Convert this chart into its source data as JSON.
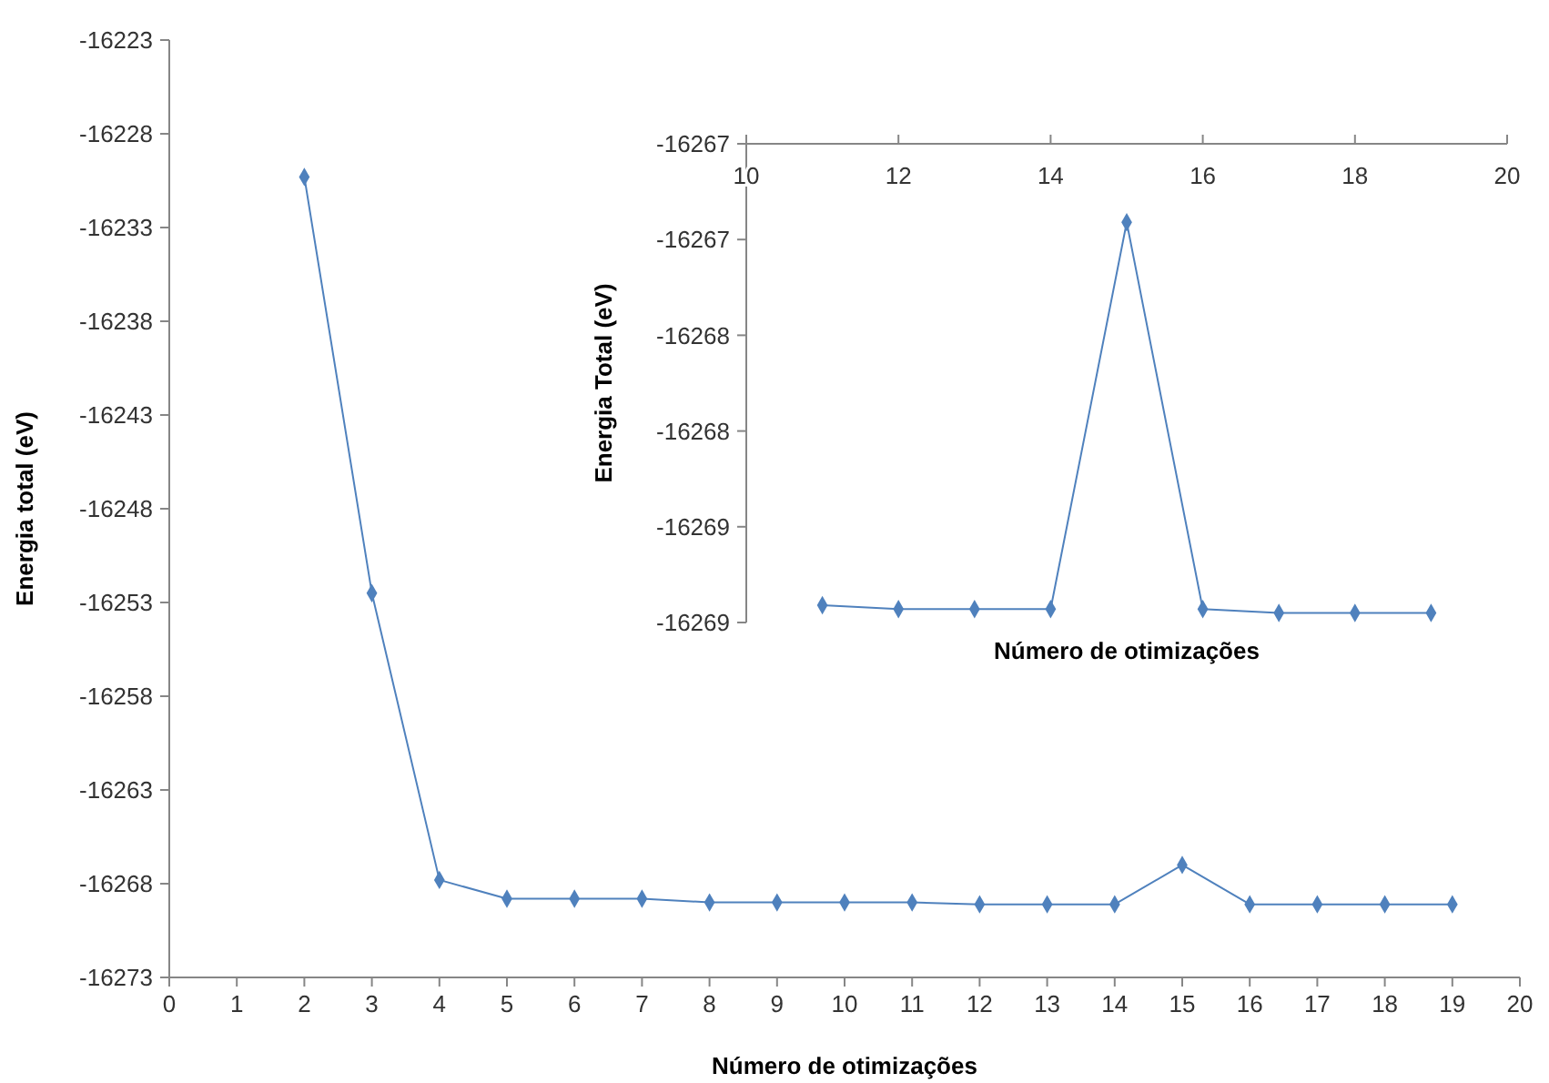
{
  "chart_data": [
    {
      "type": "line",
      "xlabel": "Número de otimizações",
      "ylabel": "Energia total (eV)",
      "x": [
        2,
        3,
        4,
        5,
        6,
        7,
        8,
        9,
        10,
        11,
        12,
        13,
        14,
        15,
        16,
        17,
        18,
        19
      ],
      "series": [
        {
          "color": "#4f81bd",
          "values": [
            -16230.3,
            -16252.5,
            -16267.8,
            -16268.8,
            -16268.8,
            -16268.8,
            -16269.0,
            -16269.0,
            -16269.0,
            -16269.0,
            -16269.1,
            -16269.1,
            -16269.1,
            -16267.0,
            -16269.1,
            -16269.1,
            -16269.1,
            -16269.1
          ]
        }
      ],
      "xlim": [
        0,
        20
      ],
      "xticks": [
        0,
        1,
        2,
        3,
        4,
        5,
        6,
        7,
        8,
        9,
        10,
        11,
        12,
        13,
        14,
        15,
        16,
        17,
        18,
        19,
        20
      ],
      "ylim": [
        -16273,
        -16223
      ],
      "yticks": [
        -16273,
        -16268,
        -16263,
        -16258,
        -16253,
        -16248,
        -16243,
        -16238,
        -16233,
        -16228,
        -16223
      ],
      "marker": "diamond",
      "line_style": "solid"
    },
    {
      "type": "line",
      "xlabel": "Número de otimizações",
      "ylabel": "Energia Total (eV)",
      "x": [
        11,
        12,
        13,
        14,
        15,
        16,
        17,
        18,
        19
      ],
      "series": [
        {
          "color": "#4f81bd",
          "values": [
            -16268.91,
            -16268.93,
            -16268.93,
            -16268.93,
            -16266.91,
            -16268.93,
            -16268.95,
            -16268.95,
            -16268.95
          ]
        }
      ],
      "xlim": [
        10,
        20
      ],
      "xticks": [
        10,
        12,
        14,
        16,
        18,
        20
      ],
      "ylim": [
        -16269,
        -16266.5
      ],
      "yticks": [
        {
          "value": -16269,
          "label": "-16269"
        },
        {
          "value": -16268.5,
          "label": "-16269"
        },
        {
          "value": -16268,
          "label": "-16268"
        },
        {
          "value": -16267.5,
          "label": "-16268"
        },
        {
          "value": -16267,
          "label": "-16267"
        },
        {
          "value": -16266.5,
          "label": "-16267"
        }
      ],
      "marker": "diamond",
      "line_style": "solid"
    }
  ]
}
